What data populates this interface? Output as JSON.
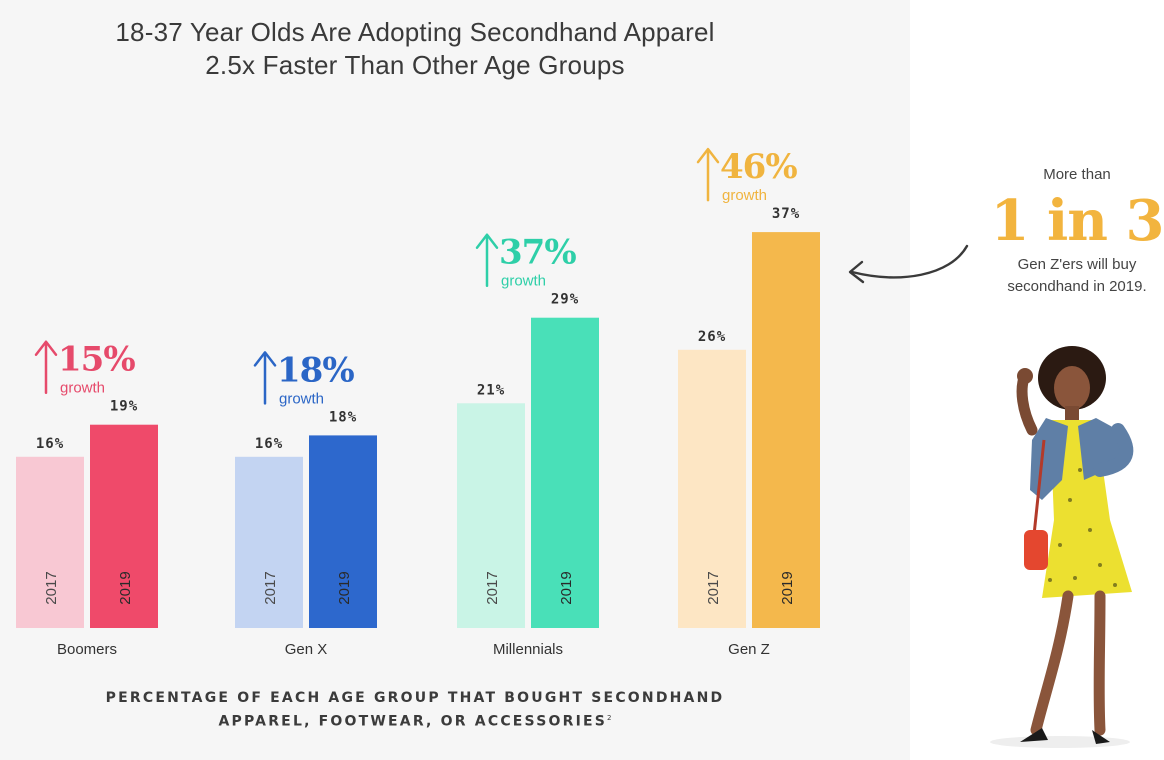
{
  "title": {
    "line1": "18-37 Year Olds Are Adopting Secondhand Apparel",
    "line2": "2.5x Faster Than Other Age Groups"
  },
  "caption": {
    "line1": "PERCENTAGE OF EACH AGE GROUP THAT BOUGHT SECONDHAND",
    "line2": "APPAREL, FOOTWEAR, OR ACCESSORIES",
    "footnote": "2"
  },
  "callout": {
    "pre": "More than",
    "big": "1 in 3",
    "post_line1": "Gen Z'ers will buy",
    "post_line2": "secondhand in 2019."
  },
  "chart_data": {
    "type": "bar",
    "categories": [
      "Boomers",
      "Gen X",
      "Millennials",
      "Gen Z"
    ],
    "series": [
      {
        "name": "2017",
        "values": [
          16,
          16,
          21,
          26
        ]
      },
      {
        "name": "2019",
        "values": [
          19,
          18,
          29,
          37
        ]
      }
    ],
    "value_labels": {
      "2017": [
        "16%",
        "16%",
        "21%",
        "26%"
      ],
      "2019": [
        "19%",
        "18%",
        "29%",
        "37%"
      ]
    },
    "growth": [
      {
        "value": "15%",
        "label": "growth"
      },
      {
        "value": "18%",
        "label": "growth"
      },
      {
        "value": "37%",
        "label": "growth"
      },
      {
        "value": "46%",
        "label": "growth"
      }
    ],
    "colors": {
      "2017": [
        "#f8c8d3",
        "#c3d4f2",
        "#c9f4e6",
        "#fde6c4"
      ],
      "2019": [
        "#ef4a6a",
        "#2d68cd",
        "#49e0b8",
        "#f4b84c"
      ],
      "growth": [
        "#e64a6b",
        "#2b66c6",
        "#2ecfa8",
        "#f0b43f"
      ]
    }
  }
}
